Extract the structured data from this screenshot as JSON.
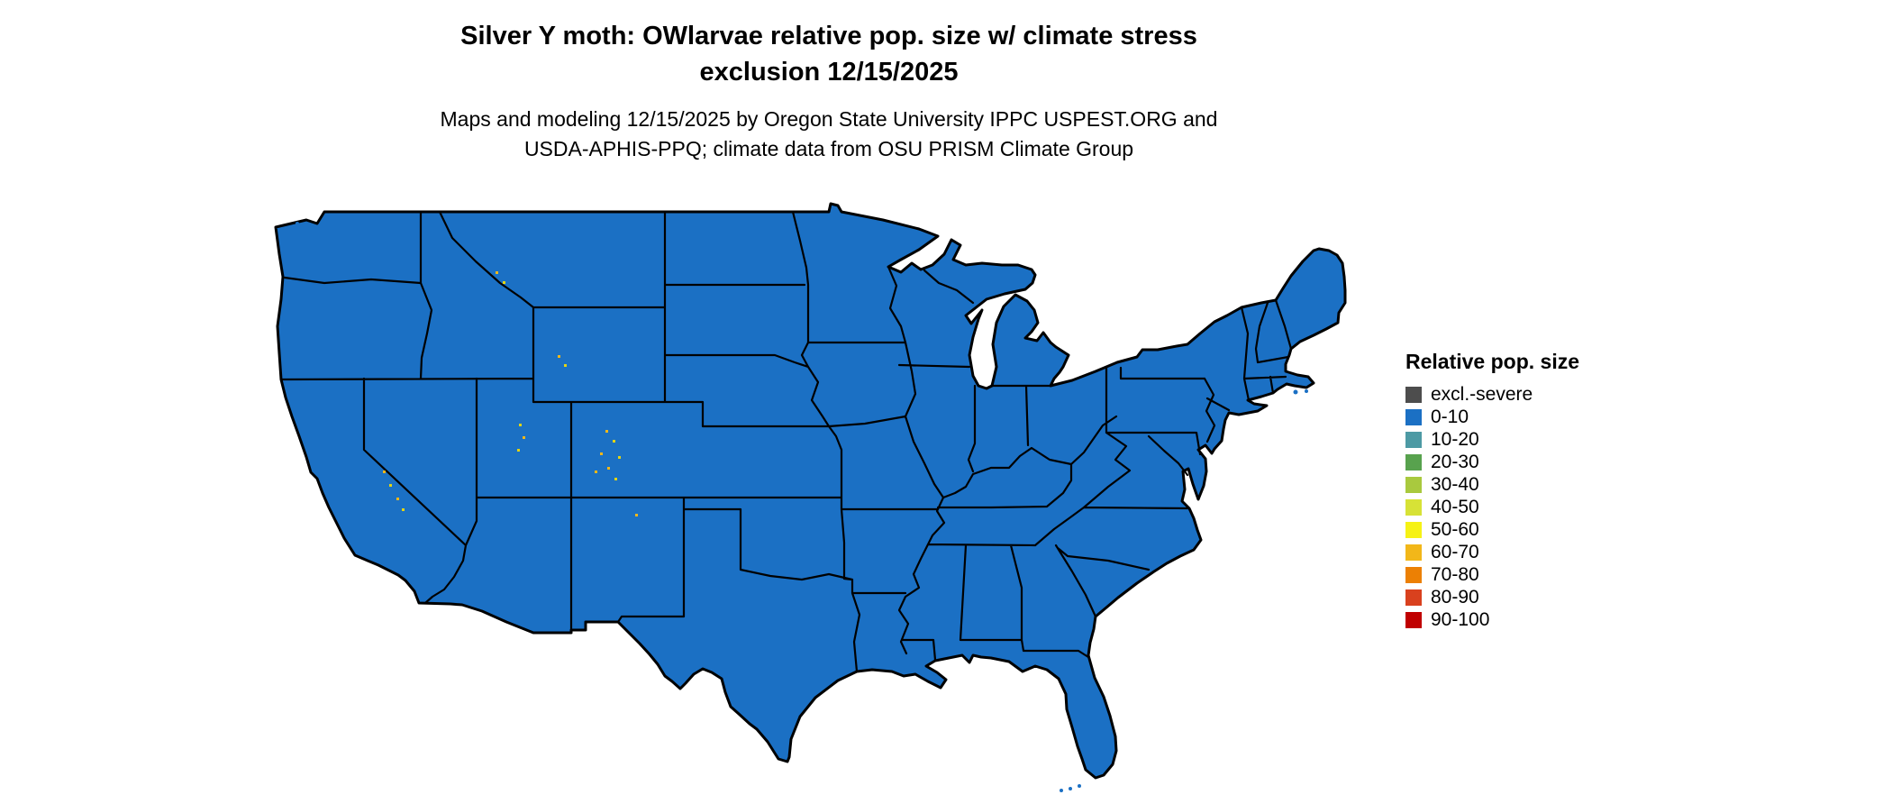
{
  "title": {
    "line1": "Silver Y moth: OWlarvae relative pop. size w/ climate stress",
    "line2": "exclusion 12/15/2025"
  },
  "subtitle": {
    "line1": "Maps and modeling 12/15/2025 by Oregon State University IPPC USPEST.ORG and",
    "line2": "USDA-APHIS-PPQ; climate data from OSU PRISM Climate Group"
  },
  "map": {
    "region": "Contiguous United States with state boundaries",
    "fill": "#1b70c4",
    "border_color": "#000000",
    "background": "#ffffff",
    "dominant_class": "0-10",
    "hotspot_colors": [
      "#f2b719",
      "#e2d414"
    ],
    "hotspot_note": "scattered small 50-70 value pixels in Sierra Nevada, Wasatch, Wyoming, Montana and Colorado Rockies"
  },
  "legend": {
    "title": "Relative pop. size",
    "items": [
      {
        "label": "excl.-severe",
        "color": "#4d4d4d"
      },
      {
        "label": "0-10",
        "color": "#1b70c4"
      },
      {
        "label": "10-20",
        "color": "#4d9aa4"
      },
      {
        "label": "20-30",
        "color": "#58a24e"
      },
      {
        "label": "30-40",
        "color": "#a9c93e"
      },
      {
        "label": "40-50",
        "color": "#d7e236"
      },
      {
        "label": "50-60",
        "color": "#f6f215"
      },
      {
        "label": "60-70",
        "color": "#f2b719"
      },
      {
        "label": "70-80",
        "color": "#ec8004"
      },
      {
        "label": "80-90",
        "color": "#d9411e"
      },
      {
        "label": "90-100",
        "color": "#c00000"
      }
    ]
  }
}
